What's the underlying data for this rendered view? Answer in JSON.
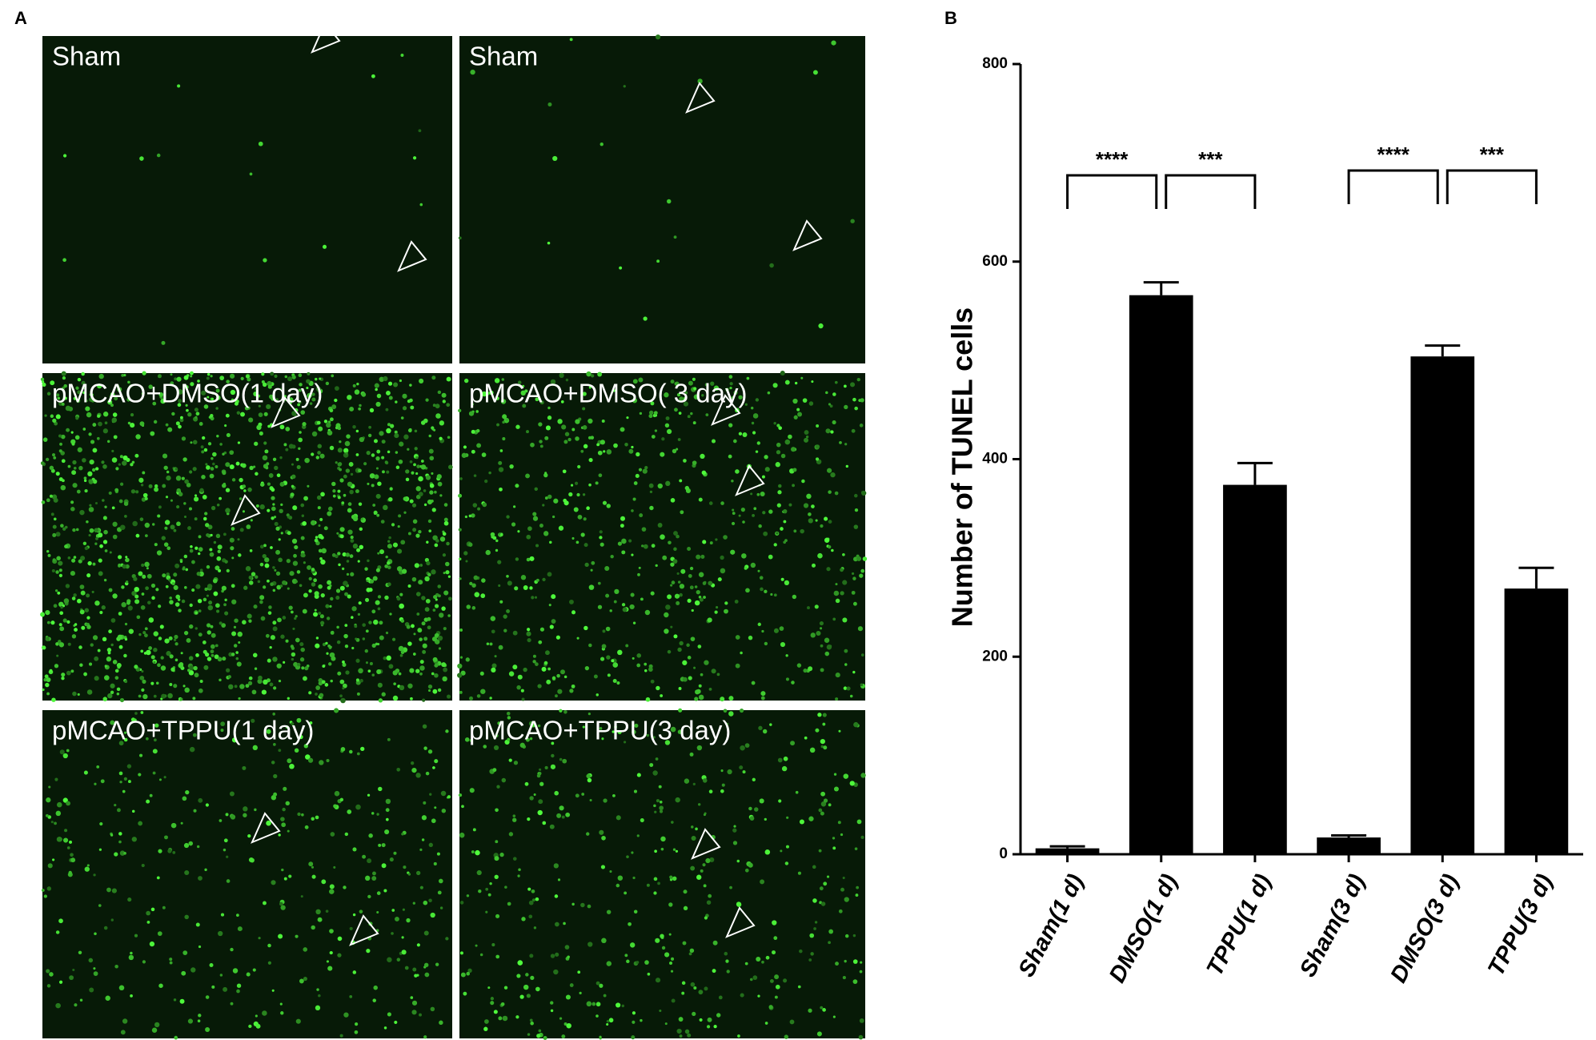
{
  "panel_a": {
    "label": "A",
    "images": [
      "Sham",
      "Sham",
      "pMCAO+DMSO(1 day)",
      "pMCAO+DMSO( 3 day)",
      "pMCAO+TPPU(1 day)",
      "pMCAO+TPPU(3 day)"
    ]
  },
  "chart_data": {
    "type": "bar",
    "panel_label": "B",
    "ylabel": "Number of TUNEL cells",
    "categories": [
      "Sham(1 d)",
      "DMSO(1 d)",
      "TPPU(1 d)",
      "Sham(3 d)",
      "DMSO(3 d)",
      "TPPU(3 d)"
    ],
    "values": [
      6,
      566,
      374,
      17,
      504,
      269
    ],
    "errors": [
      2,
      13,
      22,
      2,
      11,
      21
    ],
    "color": "#000000",
    "ylim": [
      0,
      800
    ],
    "yticks": [
      0,
      200,
      400,
      600,
      800
    ],
    "annotations": [
      "****",
      "***",
      "****",
      "***"
    ]
  }
}
